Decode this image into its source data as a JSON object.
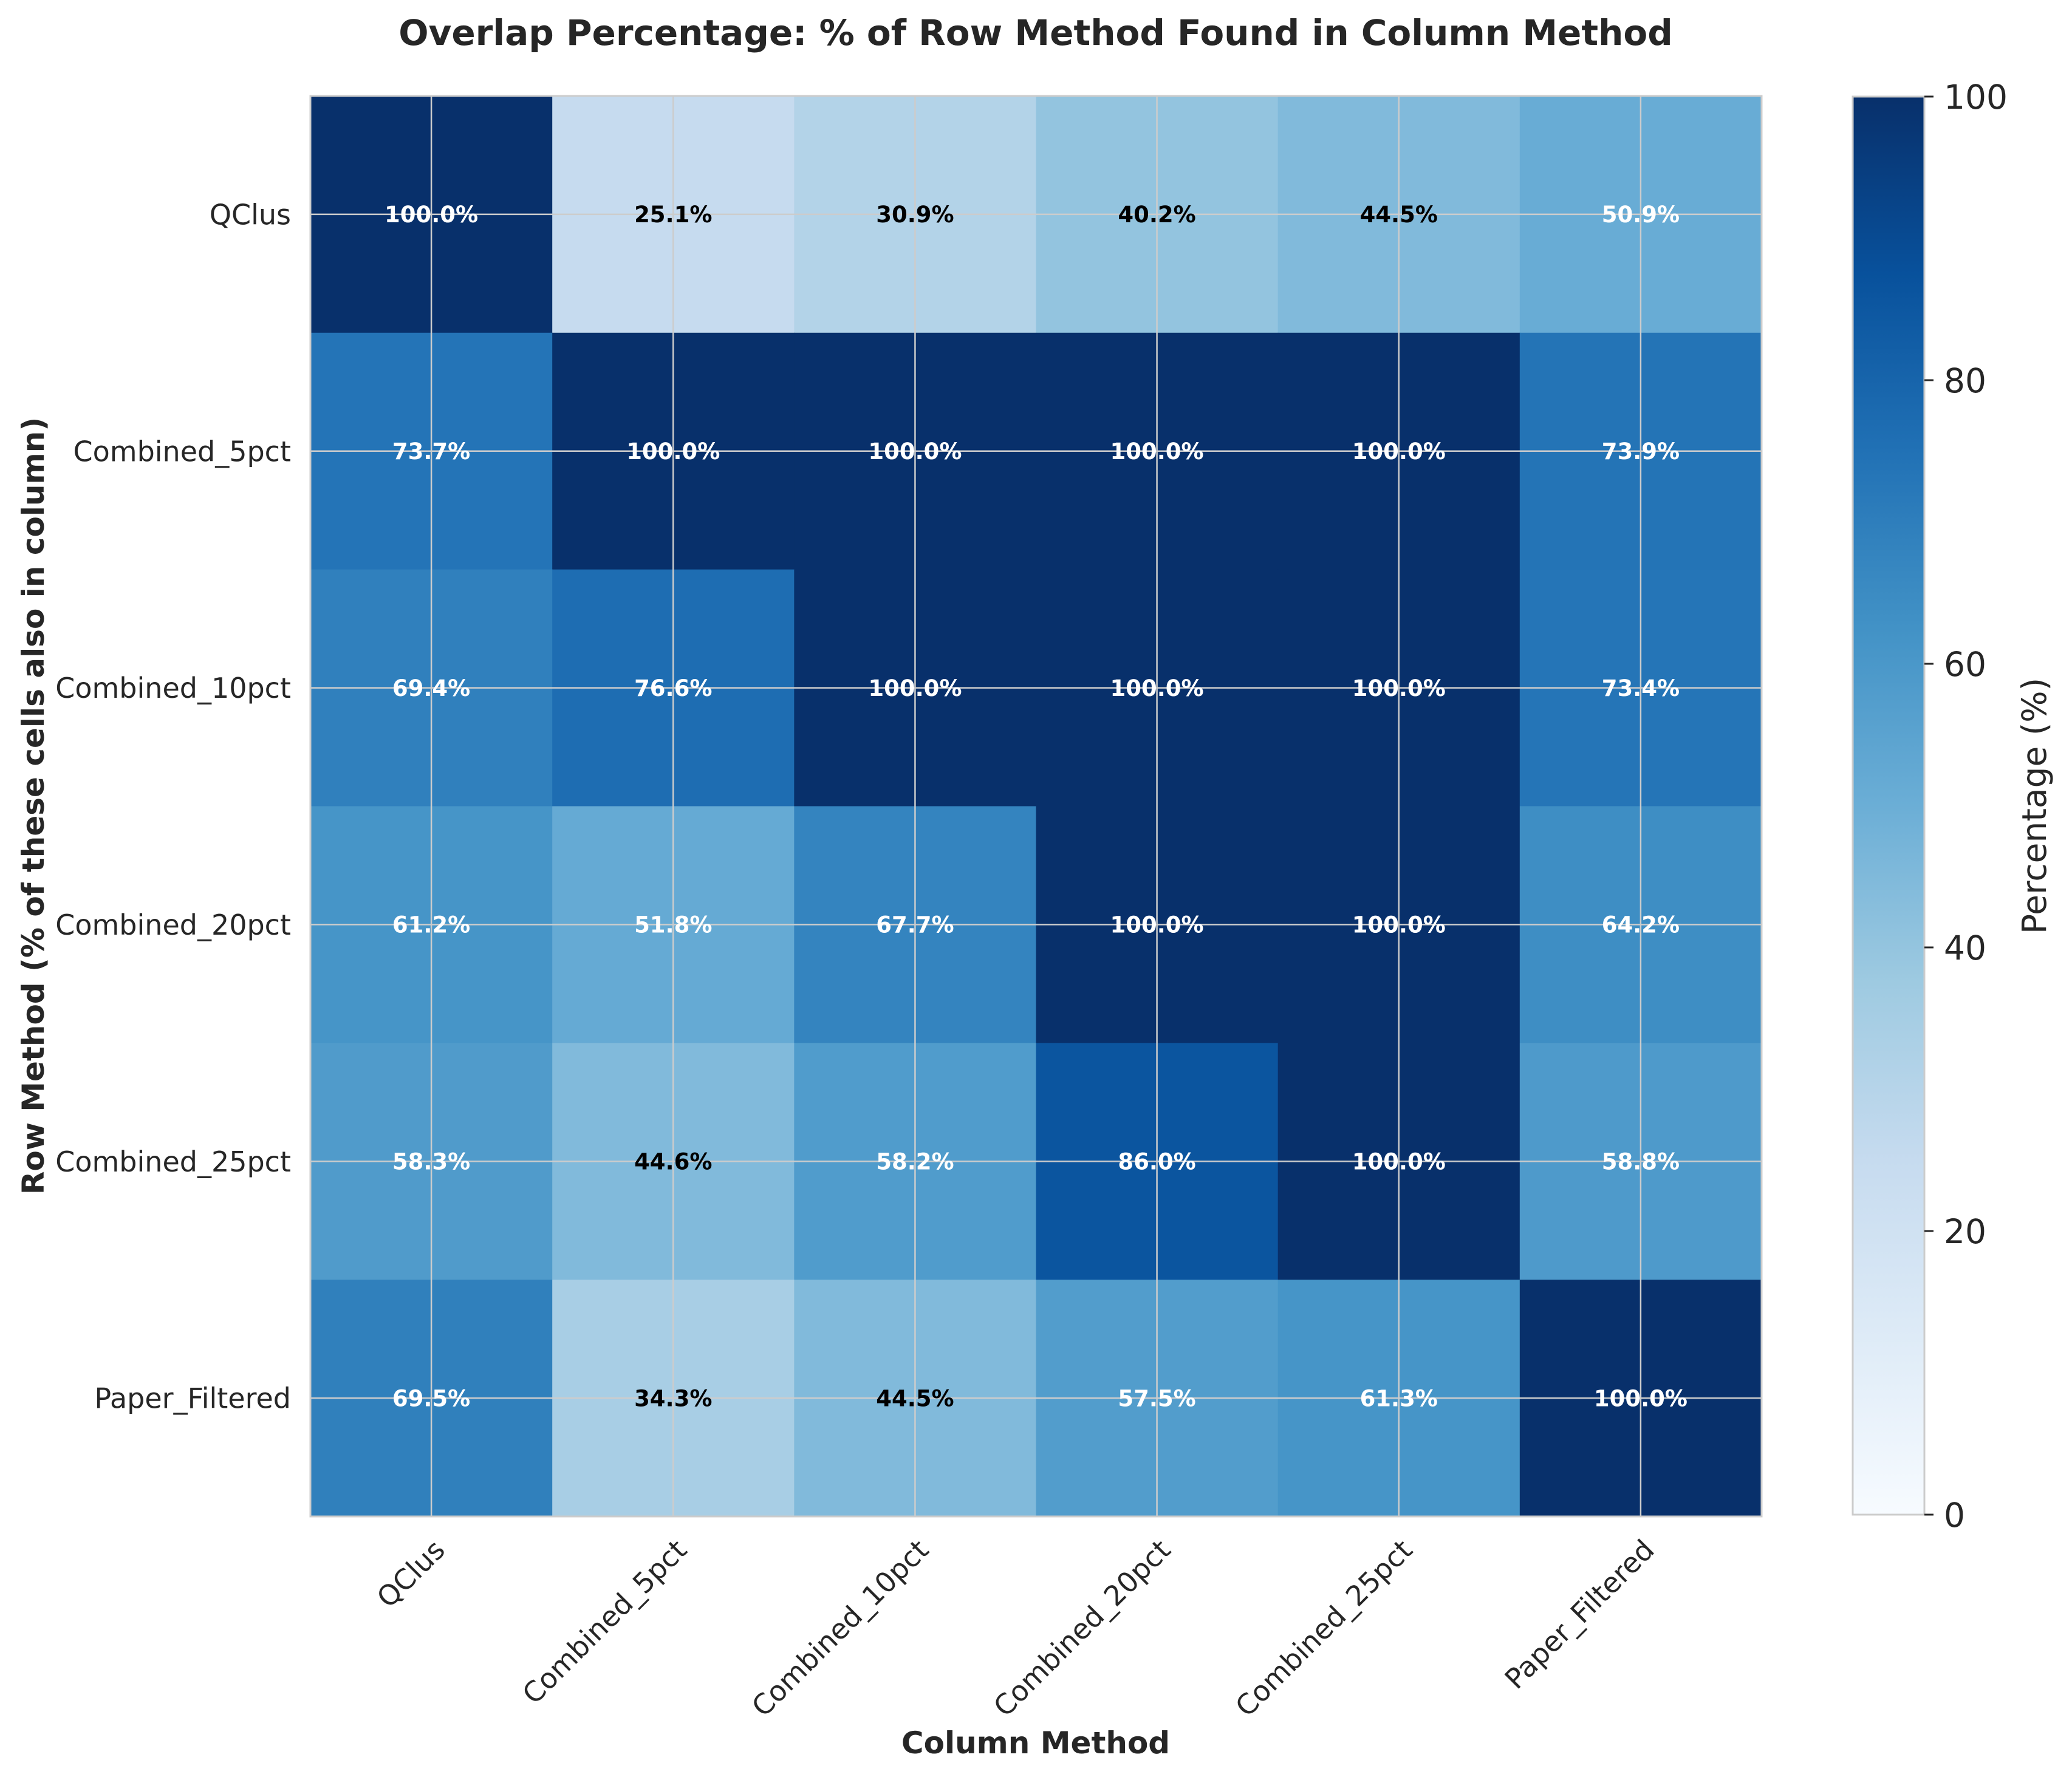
{
  "chart_data": {
    "type": "heatmap",
    "title": "Overlap Percentage: % of Row Method Found in Column Method",
    "xlabel": "Column Method",
    "ylabel": "Row Method (% of these cells also in column)",
    "x_categories": [
      "QClus",
      "Combined_5pct",
      "Combined_10pct",
      "Combined_20pct",
      "Combined_25pct",
      "Paper_Filtered"
    ],
    "y_categories": [
      "QClus",
      "Combined_5pct",
      "Combined_10pct",
      "Combined_20pct",
      "Combined_25pct",
      "Paper_Filtered"
    ],
    "values": [
      [
        100.0,
        25.1,
        30.9,
        40.2,
        44.5,
        50.9
      ],
      [
        73.7,
        100.0,
        100.0,
        100.0,
        100.0,
        73.9
      ],
      [
        69.4,
        76.6,
        100.0,
        100.0,
        100.0,
        73.4
      ],
      [
        61.2,
        51.8,
        67.7,
        100.0,
        100.0,
        64.2
      ],
      [
        58.3,
        44.6,
        58.2,
        86.0,
        100.0,
        58.8
      ],
      [
        69.5,
        34.3,
        44.5,
        57.5,
        61.3,
        100.0
      ]
    ],
    "annotations": [
      [
        "100.0%",
        "25.1%",
        "30.9%",
        "40.2%",
        "44.5%",
        "50.9%"
      ],
      [
        "73.7%",
        "100.0%",
        "100.0%",
        "100.0%",
        "100.0%",
        "73.9%"
      ],
      [
        "69.4%",
        "76.6%",
        "100.0%",
        "100.0%",
        "100.0%",
        "73.4%"
      ],
      [
        "61.2%",
        "51.8%",
        "67.7%",
        "100.0%",
        "100.0%",
        "64.2%"
      ],
      [
        "58.3%",
        "44.6%",
        "58.2%",
        "86.0%",
        "100.0%",
        "58.8%"
      ],
      [
        "69.5%",
        "34.3%",
        "44.5%",
        "57.5%",
        "61.3%",
        "100.0%"
      ]
    ],
    "value_range": [
      0,
      100
    ],
    "colormap_colors": [
      "#f7fbff",
      "#deebf7",
      "#c6dbef",
      "#9ecae1",
      "#6baed6",
      "#4292c6",
      "#2171b5",
      "#08519c",
      "#08306b"
    ],
    "annotation_colors": {
      "on_dark": "#ffffff",
      "on_light": "#000000"
    },
    "grid": true,
    "grid_color": "#cccccc",
    "text_color": "#262626",
    "colorbar": {
      "label": "Percentage (%)",
      "ticks": [
        0,
        20,
        40,
        60,
        80,
        100
      ],
      "tick_labels": [
        "0",
        "20",
        "40",
        "60",
        "80",
        "100"
      ],
      "range": [
        0,
        100
      ],
      "placement": "right"
    }
  }
}
